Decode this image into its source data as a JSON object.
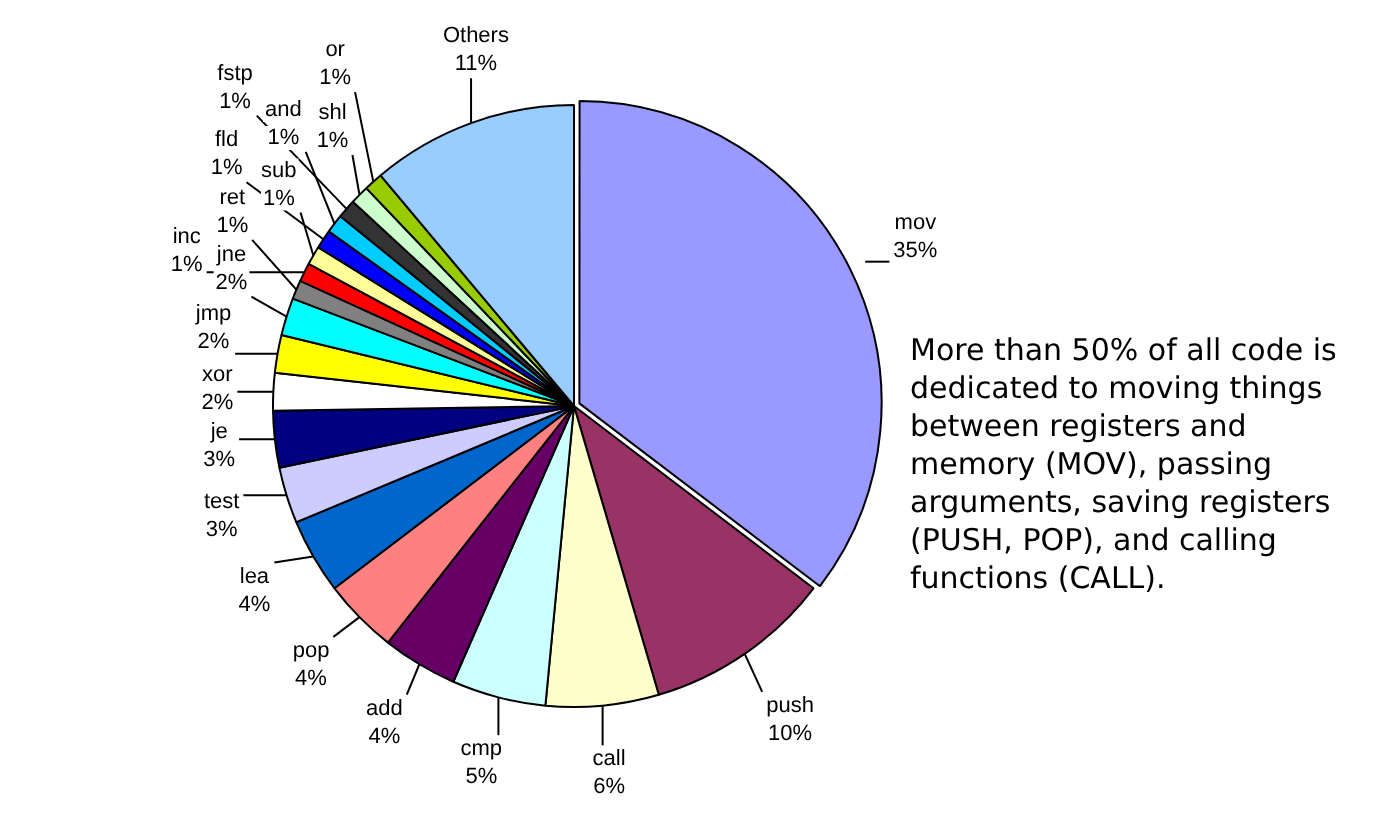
{
  "chart_data": {
    "type": "pie",
    "categories": [
      "mov",
      "push",
      "call",
      "cmp",
      "add",
      "pop",
      "lea",
      "test",
      "je",
      "xor",
      "jmp",
      "jne",
      "ret",
      "inc",
      "sub",
      "fld",
      "and",
      "fstp",
      "shl",
      "or",
      "Others"
    ],
    "values": [
      35,
      10,
      6,
      5,
      4,
      4,
      4,
      3,
      3,
      2,
      2,
      2,
      1,
      1,
      1,
      1,
      1,
      1,
      1,
      1,
      11
    ],
    "value_labels": [
      "35%",
      "10%",
      "6%",
      "5%",
      "4%",
      "4%",
      "4%",
      "3%",
      "3%",
      "2%",
      "2%",
      "2%",
      "1%",
      "1%",
      "1%",
      "1%",
      "1%",
      "1%",
      "1%",
      "1%",
      "11%"
    ],
    "colors": [
      "#9999ff",
      "#993366",
      "#ffffcc",
      "#ccffff",
      "#660066",
      "#ff8080",
      "#0066cc",
      "#ccccff",
      "#000080",
      "#ffffff",
      "#ffff00",
      "#00ffff",
      "#808080",
      "#ff0000",
      "#ffff99",
      "#0000ff",
      "#00ccff",
      "#333333",
      "#ccffcc",
      "#99cc00",
      "#99ccff"
    ],
    "legend": false,
    "annotations": [
      "More than 50% of all code is dedicated to moving things between registers and memory (MOV), passing arguments, saving registers (PUSH, POP), and calling functions (CALL)."
    ]
  }
}
